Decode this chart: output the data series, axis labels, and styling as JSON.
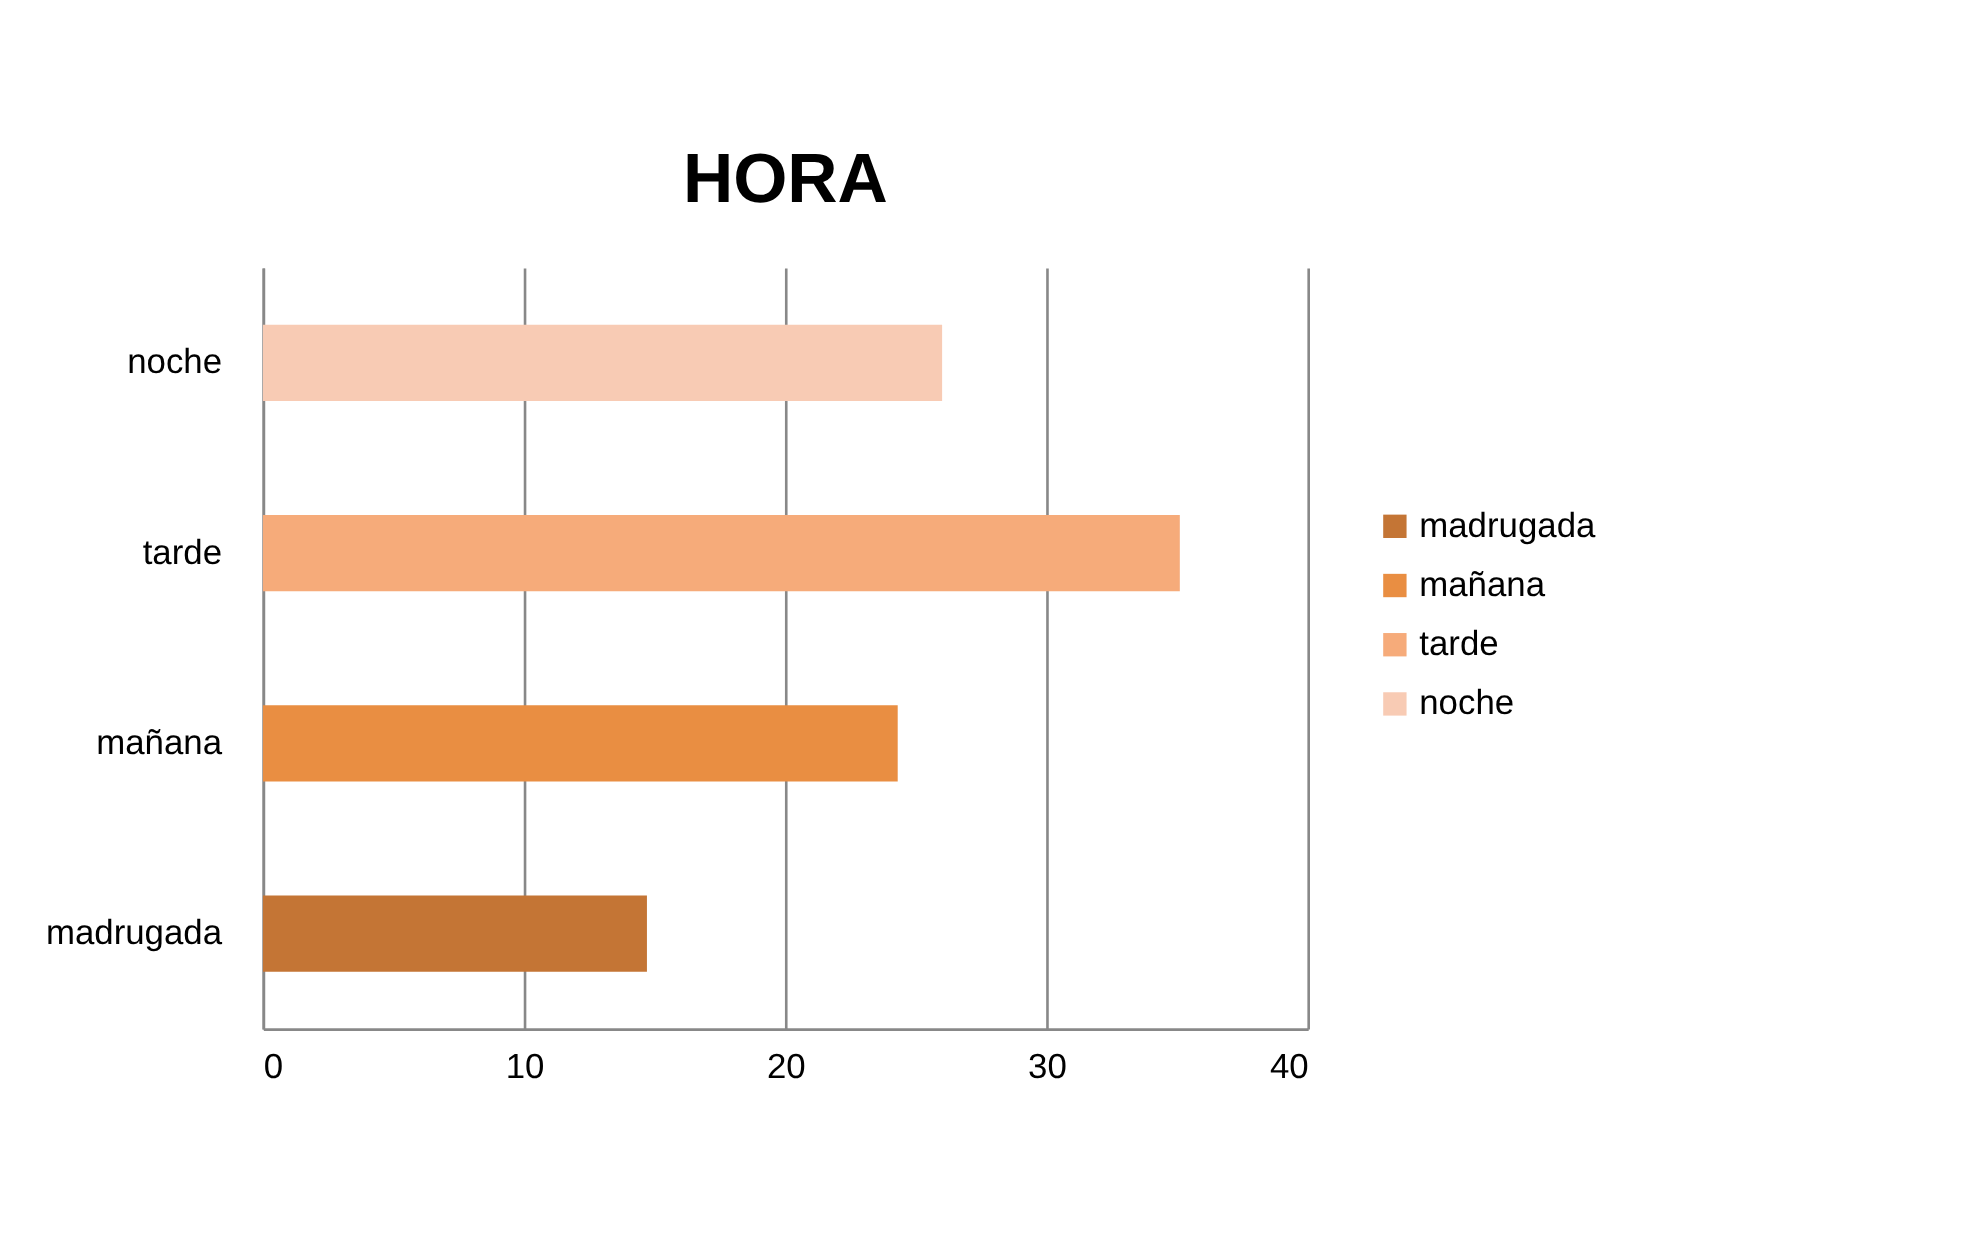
{
  "chart_data": {
    "type": "bar",
    "orientation": "horizontal",
    "title": "HORA",
    "categories": [
      "noche",
      "tarde",
      "mañana",
      "madrugada"
    ],
    "series": [
      {
        "name": "madrugada",
        "color": "#c47535",
        "values": [
          null,
          null,
          null,
          14.7
        ]
      },
      {
        "name": "mañana",
        "color": "#e98e42",
        "values": [
          null,
          null,
          24.3,
          null
        ]
      },
      {
        "name": "tarde",
        "color": "#f6ab7a",
        "values": [
          null,
          35.1,
          null,
          null
        ]
      },
      {
        "name": "noche",
        "color": "#f8cbb4",
        "values": [
          26,
          null,
          null,
          null
        ]
      }
    ],
    "xlim": [
      0,
      40
    ],
    "xticks": [
      0,
      10,
      20,
      30,
      40
    ],
    "grid": "x",
    "legend": "right"
  }
}
